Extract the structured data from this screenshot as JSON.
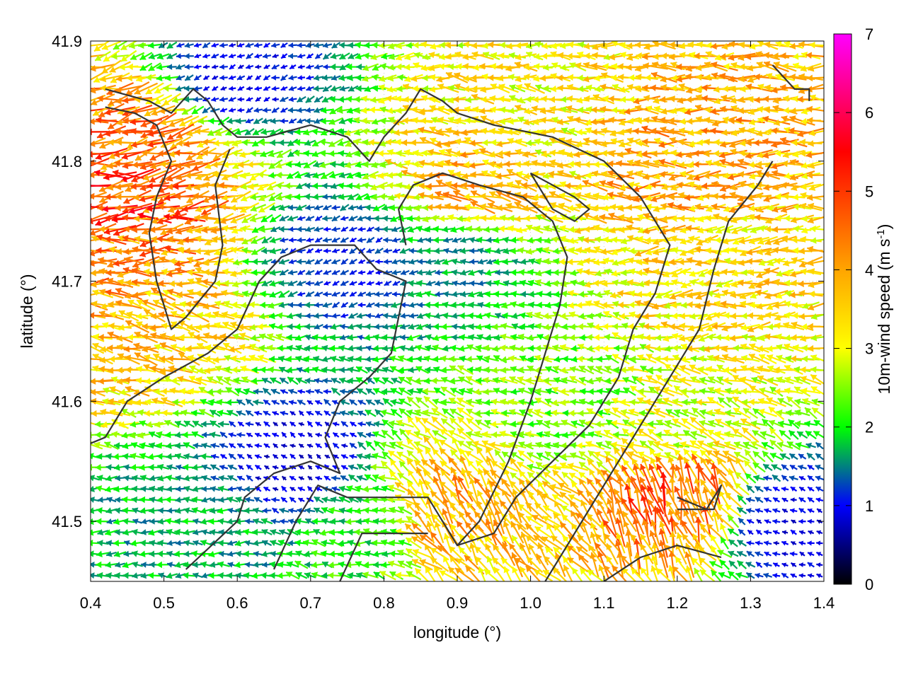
{
  "chart_data": {
    "type": "vector-field",
    "xlabel": "longitude (°)",
    "ylabel": "latitude (°)",
    "colorbar_label": "10m-wind speed (m s-1)",
    "colorbar_label_base": "10m-wind speed (m s",
    "colorbar_label_sup": "-1",
    "colorbar_label_end": ")",
    "xlim": [
      0.4,
      1.4
    ],
    "ylim": [
      41.45,
      41.9
    ],
    "xticks": [
      "0.4",
      "0.5",
      "0.6",
      "0.7",
      "0.8",
      "0.9",
      "1.0",
      "1.1",
      "1.2",
      "1.3",
      "1.4"
    ],
    "yticks": [
      "41.5",
      "41.6",
      "41.7",
      "41.8",
      "41.9"
    ],
    "colorbar_range": [
      0,
      7
    ],
    "colorbar_ticks": [
      "0",
      "1",
      "2",
      "3",
      "4",
      "5",
      "6",
      "7"
    ],
    "colormap": [
      {
        "value": 0,
        "color": "#000000"
      },
      {
        "value": 1,
        "color": "#0000ff"
      },
      {
        "value": 1.5,
        "color": "#008080"
      },
      {
        "value": 2,
        "color": "#00ff00"
      },
      {
        "value": 3,
        "color": "#ffff00"
      },
      {
        "value": 4,
        "color": "#ffa500"
      },
      {
        "value": 5.5,
        "color": "#ff0000"
      },
      {
        "value": 7,
        "color": "#ff00ff"
      }
    ],
    "grid": true,
    "legend": "none",
    "wind_regions": [
      {
        "lon": 0.45,
        "lat": 41.77,
        "speed": 4.8,
        "dir_deg": 185
      },
      {
        "lon": 0.42,
        "lat": 41.72,
        "speed": 4.2,
        "dir_deg": 182
      },
      {
        "lon": 0.5,
        "lat": 41.66,
        "speed": 3.6,
        "dir_deg": 170
      },
      {
        "lon": 0.48,
        "lat": 41.81,
        "speed": 4.4,
        "dir_deg": 195
      },
      {
        "lon": 0.75,
        "lat": 41.72,
        "speed": 1.1,
        "dir_deg": 200
      },
      {
        "lon": 0.68,
        "lat": 41.55,
        "speed": 0.8,
        "dir_deg": 150
      },
      {
        "lon": 0.9,
        "lat": 41.72,
        "speed": 1.6,
        "dir_deg": 180
      },
      {
        "lon": 0.92,
        "lat": 41.78,
        "speed": 3.8,
        "dir_deg": 170
      },
      {
        "lon": 1.0,
        "lat": 41.84,
        "speed": 3.2,
        "dir_deg": 175
      },
      {
        "lon": 1.2,
        "lat": 41.8,
        "speed": 3.9,
        "dir_deg": 180
      },
      {
        "lon": 1.25,
        "lat": 41.7,
        "speed": 3.4,
        "dir_deg": 185
      },
      {
        "lon": 1.2,
        "lat": 41.58,
        "speed": 2.9,
        "dir_deg": 160
      },
      {
        "lon": 1.2,
        "lat": 41.52,
        "speed": 4.5,
        "dir_deg": 105
      },
      {
        "lon": 0.88,
        "lat": 41.51,
        "speed": 3.9,
        "dir_deg": 120
      },
      {
        "lon": 0.78,
        "lat": 41.5,
        "speed": 2.0,
        "dir_deg": 175
      },
      {
        "lon": 1.05,
        "lat": 41.6,
        "speed": 2.4,
        "dir_deg": 170
      },
      {
        "lon": 0.6,
        "lat": 41.87,
        "speed": 1.0,
        "dir_deg": 200
      },
      {
        "lon": 1.35,
        "lat": 41.5,
        "speed": 0.9,
        "dir_deg": 160
      },
      {
        "lon": 0.55,
        "lat": 41.5,
        "speed": 1.7,
        "dir_deg": 180
      }
    ],
    "contours": [
      [
        [
          0.4,
          41.565
        ],
        [
          0.42,
          41.57
        ],
        [
          0.45,
          41.6
        ],
        [
          0.5,
          41.62
        ],
        [
          0.56,
          41.64
        ],
        [
          0.6,
          41.66
        ],
        [
          0.63,
          41.7
        ],
        [
          0.66,
          41.72
        ],
        [
          0.7,
          41.73
        ],
        [
          0.74,
          41.73
        ],
        [
          0.76,
          41.73
        ],
        [
          0.79,
          41.71
        ],
        [
          0.83,
          41.7
        ],
        [
          0.81,
          41.64
        ],
        [
          0.78,
          41.62
        ],
        [
          0.74,
          41.6
        ],
        [
          0.72,
          41.57
        ],
        [
          0.74,
          41.54
        ],
        [
          0.7,
          41.55
        ],
        [
          0.65,
          41.54
        ],
        [
          0.61,
          41.52
        ],
        [
          0.6,
          41.5
        ],
        [
          0.53,
          41.46
        ]
      ],
      [
        [
          0.42,
          41.86
        ],
        [
          0.48,
          41.85
        ],
        [
          0.51,
          41.84
        ],
        [
          0.54,
          41.86
        ],
        [
          0.56,
          41.85
        ],
        [
          0.58,
          41.83
        ],
        [
          0.6,
          41.82
        ],
        [
          0.64,
          41.82
        ],
        [
          0.7,
          41.83
        ],
        [
          0.75,
          41.82
        ],
        [
          0.78,
          41.8
        ],
        [
          0.8,
          41.82
        ],
        [
          0.83,
          41.84
        ],
        [
          0.85,
          41.86
        ],
        [
          0.88,
          41.85
        ],
        [
          0.9,
          41.84
        ],
        [
          0.95,
          41.83
        ],
        [
          1.03,
          41.82
        ],
        [
          1.1,
          41.8
        ],
        [
          1.15,
          41.77
        ],
        [
          1.19,
          41.73
        ],
        [
          1.17,
          41.69
        ],
        [
          1.14,
          41.66
        ],
        [
          1.12,
          41.62
        ],
        [
          1.08,
          41.58
        ],
        [
          1.03,
          41.55
        ],
        [
          0.98,
          41.52
        ],
        [
          0.95,
          41.49
        ],
        [
          0.9,
          41.48
        ]
      ],
      [
        [
          0.42,
          41.845
        ],
        [
          0.46,
          41.84
        ],
        [
          0.49,
          41.83
        ],
        [
          0.51,
          41.8
        ],
        [
          0.49,
          41.77
        ],
        [
          0.48,
          41.74
        ],
        [
          0.49,
          41.7
        ],
        [
          0.51,
          41.66
        ],
        [
          0.53,
          41.67
        ],
        [
          0.57,
          41.7
        ],
        [
          0.58,
          41.73
        ],
        [
          0.57,
          41.78
        ],
        [
          0.59,
          41.81
        ]
      ],
      [
        [
          0.65,
          41.46
        ],
        [
          0.68,
          41.5
        ],
        [
          0.71,
          41.53
        ],
        [
          0.75,
          41.52
        ],
        [
          0.8,
          41.52
        ],
        [
          0.86,
          41.52
        ],
        [
          0.88,
          41.5
        ],
        [
          0.9,
          41.48
        ],
        [
          0.93,
          41.5
        ],
        [
          0.97,
          41.55
        ],
        [
          1.0,
          41.6
        ],
        [
          1.02,
          41.64
        ],
        [
          1.04,
          41.68
        ],
        [
          1.05,
          41.72
        ],
        [
          1.03,
          41.75
        ],
        [
          0.99,
          41.77
        ],
        [
          0.93,
          41.78
        ],
        [
          0.88,
          41.79
        ],
        [
          0.84,
          41.78
        ],
        [
          0.82,
          41.76
        ],
        [
          0.83,
          41.73
        ]
      ],
      [
        [
          1.02,
          41.45
        ],
        [
          1.05,
          41.48
        ],
        [
          1.09,
          41.52
        ],
        [
          1.13,
          41.56
        ],
        [
          1.17,
          41.6
        ],
        [
          1.2,
          41.63
        ],
        [
          1.23,
          41.66
        ],
        [
          1.25,
          41.71
        ],
        [
          1.27,
          41.75
        ],
        [
          1.31,
          41.78
        ],
        [
          1.33,
          41.8
        ]
      ],
      [
        [
          1.1,
          41.45
        ],
        [
          1.15,
          41.47
        ],
        [
          1.2,
          41.48
        ],
        [
          1.26,
          41.47
        ]
      ],
      [
        [
          1.0,
          41.79
        ],
        [
          1.03,
          41.78
        ],
        [
          1.06,
          41.77
        ],
        [
          1.08,
          41.76
        ],
        [
          1.06,
          41.75
        ],
        [
          1.03,
          41.76
        ],
        [
          1.0,
          41.79
        ]
      ],
      [
        [
          0.74,
          41.45
        ],
        [
          0.77,
          41.49
        ],
        [
          0.82,
          41.49
        ],
        [
          0.86,
          41.49
        ]
      ],
      [
        [
          1.2,
          41.52
        ],
        [
          1.24,
          41.51
        ],
        [
          1.26,
          41.53
        ],
        [
          1.25,
          41.51
        ],
        [
          1.2,
          41.51
        ]
      ],
      [
        [
          1.33,
          41.88
        ],
        [
          1.36,
          41.86
        ],
        [
          1.38,
          41.86
        ],
        [
          1.38,
          41.85
        ]
      ]
    ]
  }
}
